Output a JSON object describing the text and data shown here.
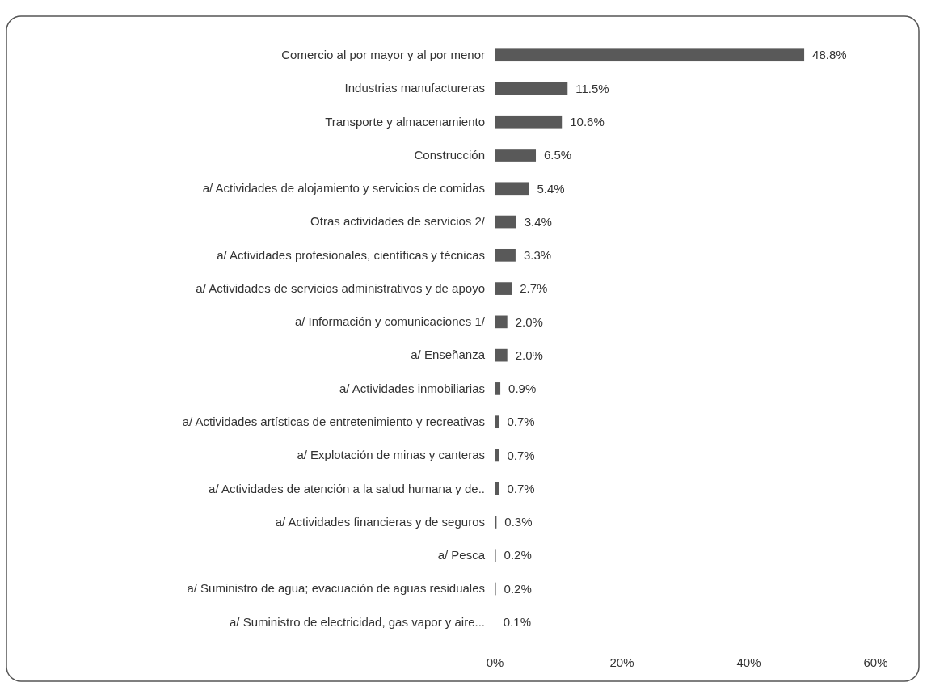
{
  "chart_data": {
    "type": "bar",
    "orientation": "horizontal",
    "categories": [
      "Comercio al por mayor y al por menor",
      "Industrias manufactureras",
      "Transporte y almacenamiento",
      "Construcción",
      "a/ Actividades de alojamiento y servicios de comidas",
      "Otras actividades de servicios 2/",
      "a/ Actividades profesionales, científicas y técnicas",
      "a/ Actividades de servicios administrativos y de apoyo",
      "a/ Información y comunicaciones 1/",
      "a/ Enseñanza",
      "a/ Actividades inmobiliarias",
      "a/ Actividades artísticas de entretenimiento y recreativas",
      "a/ Explotación de minas y canteras",
      "a/ Actividades de atención a la salud humana y de..",
      "a/ Actividades financieras y de seguros",
      "a/ Pesca",
      "a/ Suministro de agua; evacuación de aguas residuales",
      "a/ Suministro de electricidad, gas vapor y aire..."
    ],
    "values": [
      48.8,
      11.5,
      10.6,
      6.5,
      5.4,
      3.4,
      3.3,
      2.7,
      2.0,
      2.0,
      0.9,
      0.7,
      0.7,
      0.7,
      0.3,
      0.2,
      0.2,
      0.1
    ],
    "value_labels": [
      "48.8%",
      "11.5%",
      "10.6%",
      "6.5%",
      "5.4%",
      "3.4%",
      "3.3%",
      "2.7%",
      "2.0%",
      "2.0%",
      "0.9%",
      "0.7%",
      "0.7%",
      "0.7%",
      "0.3%",
      "0.2%",
      "0.2%",
      "0.1%"
    ],
    "color": "#595959",
    "xlim": [
      0,
      60
    ],
    "xticks": [
      {
        "value": 0,
        "label": "0%"
      },
      {
        "value": 20,
        "label": "20%"
      },
      {
        "value": 40,
        "label": "40%"
      },
      {
        "value": 60,
        "label": "60%"
      }
    ],
    "grid": false
  }
}
